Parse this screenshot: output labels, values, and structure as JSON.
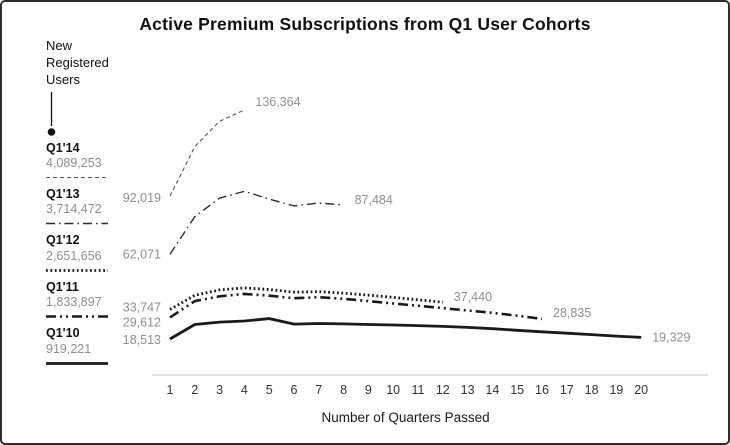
{
  "legend": {
    "heading_lines": [
      "New",
      "Registered",
      "Users"
    ],
    "cohorts": [
      {
        "label": "Q1'14",
        "users": "4,089,253"
      },
      {
        "label": "Q1'13",
        "users": "3,714,472"
      },
      {
        "label": "Q1'12",
        "users": "2,651,656"
      },
      {
        "label": "Q1'11",
        "users": "1,833,897"
      },
      {
        "label": "Q1'10",
        "users": "919,221"
      }
    ]
  },
  "chart_data": {
    "type": "line",
    "title": "Active Premium Subscriptions from Q1 User Cohorts",
    "xlabel": "Number of Quarters Passed",
    "x_ticks": [
      1,
      2,
      3,
      4,
      5,
      6,
      7,
      8,
      9,
      10,
      11,
      12,
      13,
      14,
      15,
      16,
      17,
      18,
      19,
      20
    ],
    "ylim": [
      0,
      143000
    ],
    "grid": false,
    "legend_position": "left",
    "series": [
      {
        "name": "Q1'14",
        "new_registered_users": 4089253,
        "color": "#555555",
        "dash": "4 3",
        "stroke_width": 1.1,
        "start_label": "92,019",
        "end_label": "136,364",
        "start_dy": 2,
        "end_dy": -8,
        "x": [
          1,
          2,
          3,
          4
        ],
        "values": [
          92019,
          117500,
          130500,
          136364
        ]
      },
      {
        "name": "Q1'13",
        "new_registered_users": 3714472,
        "color": "#2b2b2b",
        "dash": "9 4 1.5 4",
        "stroke_width": 1.4,
        "start_label": "62,071",
        "end_label": "87,484",
        "start_dy": 0,
        "end_dy": -5,
        "x": [
          1,
          2,
          3,
          4,
          5,
          6,
          7,
          8
        ],
        "values": [
          62071,
          81500,
          91000,
          94500,
          90500,
          87000,
          88500,
          87484
        ]
      },
      {
        "name": "Q1'12",
        "new_registered_users": 2651656,
        "color": "#1a1a1a",
        "dash": "1.8 2.6",
        "stroke_width": 2.8,
        "start_label": "33,747",
        "end_label": "37,440",
        "start_dy": -2,
        "end_dy": -5,
        "x": [
          1,
          2,
          3,
          4,
          5,
          6,
          7,
          8,
          9,
          10,
          11,
          12
        ],
        "values": [
          33747,
          41000,
          43800,
          44800,
          44000,
          42600,
          42900,
          42100,
          41100,
          39900,
          38700,
          37440
        ]
      },
      {
        "name": "Q1'11",
        "new_registered_users": 1833897,
        "color": "#1a1a1a",
        "dash": "10 4 2 4 2 4",
        "stroke_width": 2.6,
        "start_label": "29,612",
        "end_label": "28,835",
        "start_dy": 5,
        "end_dy": -6,
        "x": [
          1,
          2,
          3,
          4,
          5,
          6,
          7,
          8,
          9,
          10,
          11,
          12,
          13,
          14,
          15,
          16
        ],
        "values": [
          29612,
          38000,
          40500,
          41700,
          40800,
          39500,
          40000,
          39200,
          38000,
          36800,
          35600,
          34400,
          33200,
          32000,
          30500,
          28835
        ]
      },
      {
        "name": "Q1'10",
        "new_registered_users": 919221,
        "color": "#1a1a1a",
        "dash": null,
        "stroke_width": 2.8,
        "start_label": "18,513",
        "end_label": "19,329",
        "start_dy": 1,
        "end_dy": 0,
        "x": [
          1,
          2,
          3,
          4,
          5,
          6,
          7,
          8,
          9,
          10,
          11,
          12,
          13,
          14,
          15,
          16,
          17,
          18,
          19,
          20
        ],
        "values": [
          18513,
          26000,
          27200,
          27800,
          29000,
          26200,
          26500,
          26300,
          26000,
          25700,
          25400,
          25000,
          24500,
          23800,
          23000,
          22200,
          21500,
          20800,
          20000,
          19329
        ]
      }
    ]
  }
}
